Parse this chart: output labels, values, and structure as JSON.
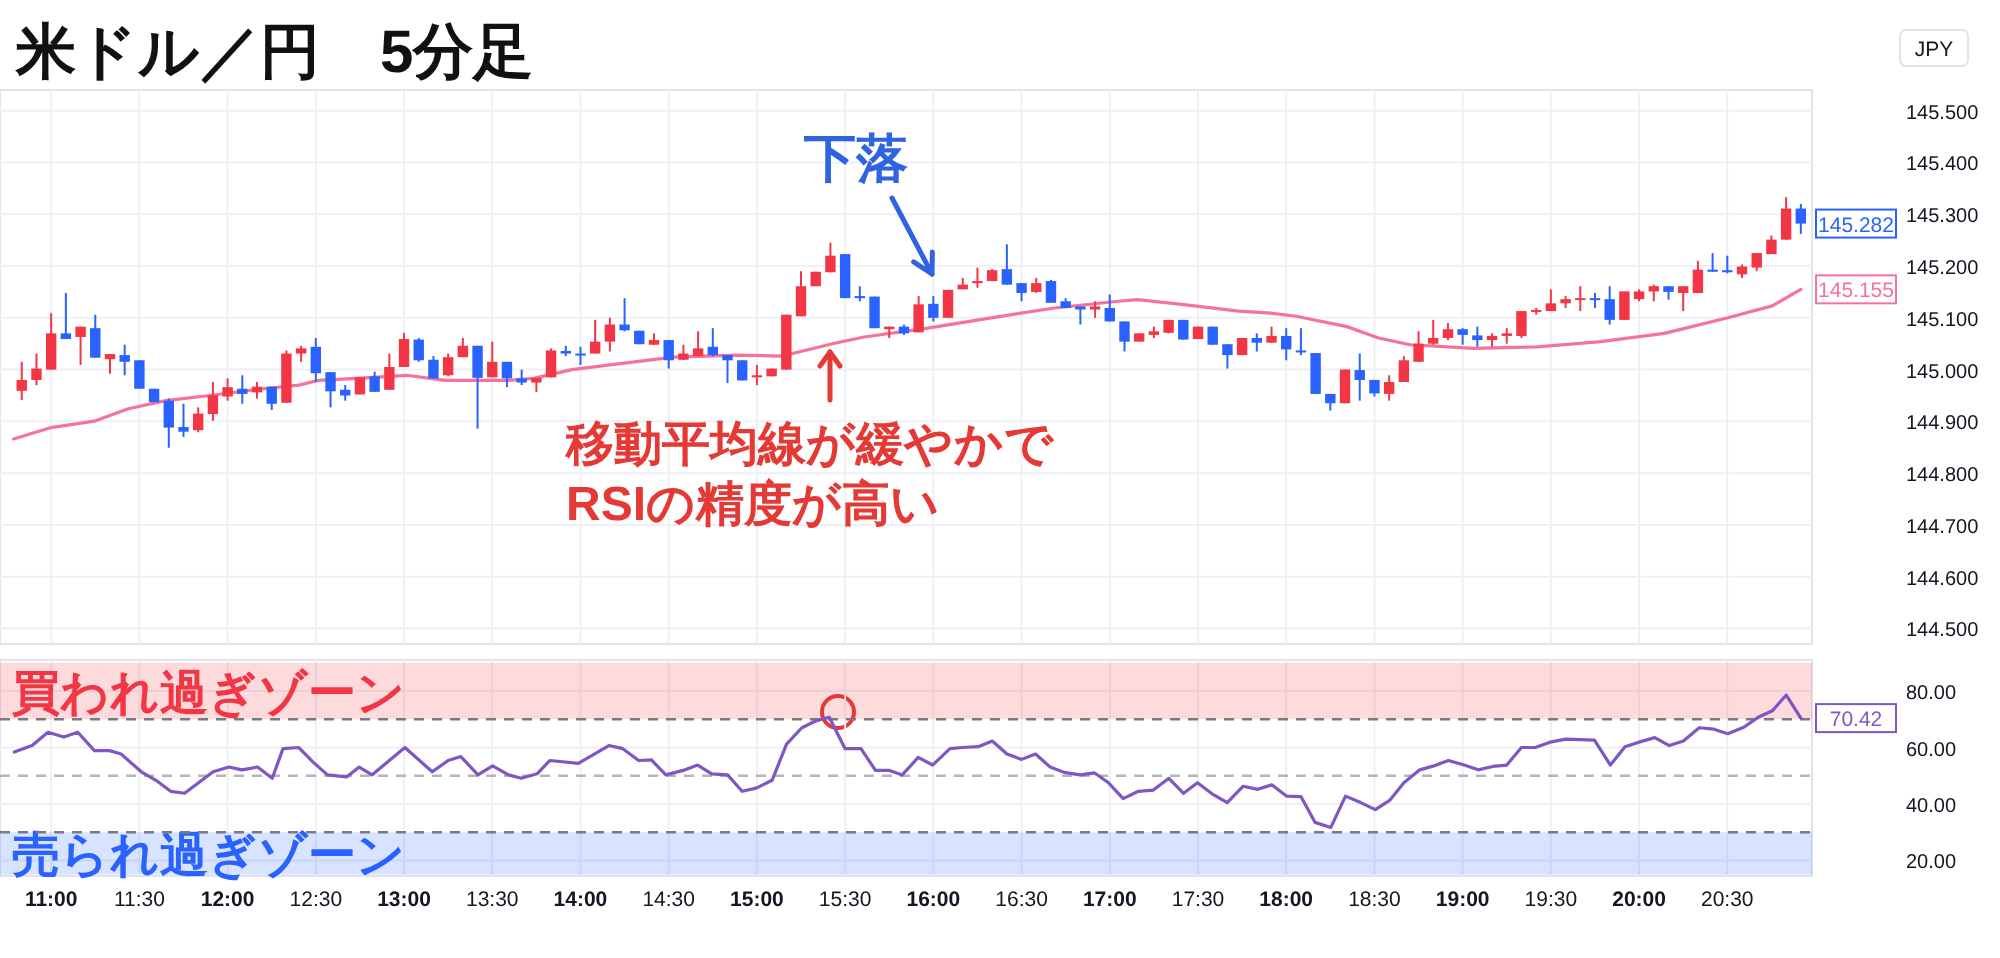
{
  "chart_data": [
    {
      "type": "candlestick",
      "title": "米ドル／円　5分足",
      "ylabel": "JPY",
      "x": [
        10.8333,
        10.9167,
        11,
        11.0833,
        11.1667,
        11.25,
        11.3333,
        11.4167,
        11.5,
        11.5833,
        11.6667,
        11.75,
        11.8333,
        11.9167,
        12,
        12.0833,
        12.1667,
        12.25,
        12.3333,
        12.4167,
        12.5,
        12.5833,
        12.6667,
        12.75,
        12.8333,
        12.9167,
        13,
        13.0833,
        13.1667,
        13.25,
        13.3333,
        13.4167,
        13.5,
        13.5833,
        13.6667,
        13.75,
        13.8333,
        13.9167,
        14,
        14.0833,
        14.1667,
        14.25,
        14.3333,
        14.4167,
        14.5,
        14.5833,
        14.6667,
        14.75,
        14.8333,
        14.9167,
        15,
        15.0833,
        15.1667,
        15.25,
        15.3333,
        15.4167,
        15.5,
        15.5833,
        15.6667,
        15.75,
        15.8333,
        15.9167,
        16,
        16.0833,
        16.1667,
        16.25,
        16.3333,
        16.4167,
        16.5,
        16.5833,
        16.6667,
        16.75,
        16.8333,
        16.9167,
        17,
        17.0833,
        17.1667,
        17.25,
        17.3333,
        17.4167,
        17.5,
        17.5833,
        17.6667,
        17.75,
        17.8333,
        17.9167,
        18,
        18.0833,
        18.1667,
        18.25,
        18.3333,
        18.4167,
        18.5,
        18.5833,
        18.6667,
        18.75,
        18.8333,
        18.9167,
        19,
        19.0833,
        19.1667,
        19.25,
        19.3333,
        19.4167,
        19.5,
        19.5833,
        19.6667,
        19.75,
        19.8333,
        19.9167,
        20,
        20.0833,
        20.1667,
        20.25,
        20.3333,
        20.4167,
        20.5,
        20.5833,
        20.6667,
        20.75,
        20.8333,
        20.9167
      ],
      "ohlc": [
        [
          144.959,
          145.015,
          144.941,
          144.98
        ],
        [
          144.98,
          145.031,
          144.97,
          145.002
        ],
        [
          145.0,
          145.109,
          145.0,
          145.07
        ],
        [
          145.07,
          145.148,
          145.059,
          145.059
        ],
        [
          145.063,
          145.083,
          145.009,
          145.083
        ],
        [
          145.08,
          145.106,
          145.023,
          145.023
        ],
        [
          145.02,
          145.03,
          144.992,
          145.03
        ],
        [
          145.028,
          145.048,
          144.989,
          145.015
        ],
        [
          145.018,
          145.018,
          144.963,
          144.963
        ],
        [
          144.963,
          144.963,
          144.937,
          144.937
        ],
        [
          144.94,
          144.944,
          144.849,
          144.888
        ],
        [
          144.889,
          144.934,
          144.87,
          144.88
        ],
        [
          144.883,
          144.927,
          144.879,
          144.915
        ],
        [
          144.914,
          144.976,
          144.901,
          144.95
        ],
        [
          144.948,
          144.983,
          144.94,
          144.966
        ],
        [
          144.963,
          144.989,
          144.934,
          144.953
        ],
        [
          144.956,
          144.976,
          144.944,
          144.967
        ],
        [
          144.967,
          144.967,
          144.922,
          144.934
        ],
        [
          144.936,
          145.037,
          144.936,
          145.031
        ],
        [
          145.031,
          145.046,
          145.015,
          145.041
        ],
        [
          145.044,
          145.061,
          144.976,
          144.993
        ],
        [
          144.995,
          144.995,
          144.927,
          144.958
        ],
        [
          144.961,
          144.97,
          144.94,
          144.95
        ],
        [
          144.952,
          144.985,
          144.952,
          144.985
        ],
        [
          144.987,
          144.996,
          144.957,
          144.957
        ],
        [
          144.961,
          145.031,
          144.961,
          145.005
        ],
        [
          145.005,
          145.071,
          145.005,
          145.059
        ],
        [
          145.058,
          145.061,
          145.015,
          145.018
        ],
        [
          145.019,
          145.026,
          144.983,
          144.983
        ],
        [
          144.989,
          145.031,
          144.987,
          145.024
        ],
        [
          145.024,
          145.061,
          145.024,
          145.046
        ],
        [
          145.046,
          145.046,
          144.886,
          144.984
        ],
        [
          144.985,
          145.054,
          144.985,
          145.015
        ],
        [
          145.015,
          145.015,
          144.966,
          144.983
        ],
        [
          144.983,
          145.0,
          144.97,
          144.975
        ],
        [
          144.975,
          144.984,
          144.957,
          144.984
        ],
        [
          144.985,
          145.041,
          144.985,
          145.037
        ],
        [
          145.036,
          145.046,
          145.026,
          145.031
        ],
        [
          145.031,
          145.044,
          145.009,
          145.028
        ],
        [
          145.031,
          145.096,
          145.031,
          145.054
        ],
        [
          145.054,
          145.1,
          145.035,
          145.087
        ],
        [
          145.087,
          145.138,
          145.074,
          145.076
        ],
        [
          145.075,
          145.075,
          145.049,
          145.049
        ],
        [
          145.048,
          145.07,
          145.048,
          145.057
        ],
        [
          145.057,
          145.057,
          145.002,
          145.018
        ],
        [
          145.019,
          145.048,
          145.019,
          145.031
        ],
        [
          145.026,
          145.074,
          145.026,
          145.041
        ],
        [
          145.044,
          145.08,
          145.026,
          145.028
        ],
        [
          145.028,
          145.028,
          144.974,
          145.018
        ],
        [
          145.018,
          145.018,
          144.979,
          144.979
        ],
        [
          144.985,
          145.009,
          144.97,
          144.989
        ],
        [
          144.987,
          145.002,
          144.987,
          145.002
        ],
        [
          145.0,
          145.106,
          145.0,
          145.106
        ],
        [
          145.103,
          145.19,
          145.103,
          145.161
        ],
        [
          145.161,
          145.189,
          145.161,
          145.189
        ],
        [
          145.188,
          145.245,
          145.188,
          145.22
        ],
        [
          145.223,
          145.223,
          145.138,
          145.138
        ],
        [
          145.142,
          145.161,
          145.132,
          145.138
        ],
        [
          145.141,
          145.141,
          145.08,
          145.08
        ],
        [
          145.078,
          145.083,
          145.061,
          145.083
        ],
        [
          145.083,
          145.087,
          145.067,
          145.07
        ],
        [
          145.072,
          145.142,
          145.072,
          145.126
        ],
        [
          145.127,
          145.142,
          145.093,
          145.1
        ],
        [
          145.1,
          145.154,
          145.1,
          145.154
        ],
        [
          145.155,
          145.177,
          145.155,
          145.164
        ],
        [
          145.167,
          145.197,
          145.158,
          145.171
        ],
        [
          145.171,
          145.194,
          145.171,
          145.192
        ],
        [
          145.194,
          145.242,
          145.164,
          145.164
        ],
        [
          145.167,
          145.167,
          145.132,
          145.148
        ],
        [
          145.15,
          145.177,
          145.148,
          145.167
        ],
        [
          145.171,
          145.173,
          145.129,
          145.129
        ],
        [
          145.132,
          145.138,
          145.119,
          145.119
        ],
        [
          145.122,
          145.122,
          145.087,
          145.116
        ],
        [
          145.116,
          145.132,
          145.1,
          145.122
        ],
        [
          145.119,
          145.145,
          145.093,
          145.093
        ],
        [
          145.093,
          145.093,
          145.035,
          145.054
        ],
        [
          145.054,
          145.07,
          145.054,
          145.07
        ],
        [
          145.067,
          145.083,
          145.061,
          145.074
        ],
        [
          145.071,
          145.096,
          145.07,
          145.096
        ],
        [
          145.096,
          145.096,
          145.058,
          145.058
        ],
        [
          145.059,
          145.083,
          145.059,
          145.083
        ],
        [
          145.083,
          145.083,
          145.048,
          145.048
        ],
        [
          145.049,
          145.049,
          145.002,
          145.028
        ],
        [
          145.028,
          145.061,
          145.028,
          145.061
        ],
        [
          145.061,
          145.07,
          145.035,
          145.052
        ],
        [
          145.052,
          145.083,
          145.052,
          145.065
        ],
        [
          145.065,
          145.08,
          145.018,
          145.039
        ],
        [
          145.037,
          145.08,
          145.028,
          145.035
        ],
        [
          145.032,
          145.032,
          144.953,
          144.953
        ],
        [
          144.953,
          144.953,
          144.921,
          144.935
        ],
        [
          144.935,
          145.0,
          144.935,
          145.0
        ],
        [
          144.999,
          145.031,
          144.94,
          144.98
        ],
        [
          144.98,
          144.98,
          144.948,
          144.954
        ],
        [
          144.953,
          144.989,
          144.94,
          144.976
        ],
        [
          144.976,
          145.026,
          144.976,
          145.018
        ],
        [
          145.015,
          145.074,
          145.015,
          145.05
        ],
        [
          145.05,
          145.096,
          145.048,
          145.061
        ],
        [
          145.061,
          145.09,
          145.057,
          145.078
        ],
        [
          145.078,
          145.08,
          145.048,
          145.067
        ],
        [
          145.066,
          145.083,
          145.044,
          145.057
        ],
        [
          145.057,
          145.07,
          145.044,
          145.065
        ],
        [
          145.065,
          145.08,
          145.05,
          145.07
        ],
        [
          145.065,
          145.113,
          145.061,
          145.113
        ],
        [
          145.113,
          145.119,
          145.106,
          145.115
        ],
        [
          145.113,
          145.155,
          145.113,
          145.128
        ],
        [
          145.128,
          145.142,
          145.119,
          145.136
        ],
        [
          145.135,
          145.161,
          145.113,
          145.138
        ],
        [
          145.138,
          145.148,
          145.119,
          145.135
        ],
        [
          145.136,
          145.161,
          145.087,
          145.096
        ],
        [
          145.096,
          145.151,
          145.096,
          145.151
        ],
        [
          145.136,
          145.155,
          145.132,
          145.151
        ],
        [
          145.151,
          145.164,
          145.132,
          145.161
        ],
        [
          145.161,
          145.161,
          145.135,
          145.15
        ],
        [
          145.148,
          145.161,
          145.113,
          145.161
        ],
        [
          145.148,
          145.21,
          145.148,
          145.193
        ],
        [
          145.193,
          145.225,
          145.189,
          145.189
        ],
        [
          145.192,
          145.22,
          145.186,
          145.188
        ],
        [
          145.184,
          145.203,
          145.177,
          145.199
        ],
        [
          145.197,
          145.225,
          145.19,
          145.225
        ],
        [
          145.223,
          145.259,
          145.223,
          145.251
        ],
        [
          145.251,
          145.333,
          145.251,
          145.311
        ],
        [
          145.311,
          145.32,
          145.262,
          145.282
        ]
      ],
      "colors": [
        "#f23645",
        "#f23645",
        "#f23645",
        "#2962ff",
        "#f23645",
        "#2962ff",
        "#f23645",
        "#2962ff",
        "#2962ff",
        "#2962ff",
        "#2962ff",
        "#2962ff",
        "#f23645",
        "#f23645",
        "#f23645",
        "#2962ff",
        "#f23645",
        "#2962ff",
        "#f23645",
        "#f23645",
        "#2962ff",
        "#2962ff",
        "#2962ff",
        "#f23645",
        "#2962ff",
        "#f23645",
        "#f23645",
        "#2962ff",
        "#2962ff",
        "#f23645",
        "#f23645",
        "#2962ff",
        "#f23645",
        "#2962ff",
        "#2962ff",
        "#f23645",
        "#f23645",
        "#2962ff",
        "#2962ff",
        "#f23645",
        "#f23645",
        "#2962ff",
        "#2962ff",
        "#f23645",
        "#2962ff",
        "#f23645",
        "#f23645",
        "#2962ff",
        "#2962ff",
        "#2962ff",
        "#f23645",
        "#f23645",
        "#f23645",
        "#f23645",
        "#f23645",
        "#f23645",
        "#2962ff",
        "#2962ff",
        "#2962ff",
        "#f23645",
        "#2962ff",
        "#f23645",
        "#2962ff",
        "#f23645",
        "#f23645",
        "#f23645",
        "#f23645",
        "#2962ff",
        "#2962ff",
        "#f23645",
        "#2962ff",
        "#2962ff",
        "#2962ff",
        "#f23645",
        "#2962ff",
        "#2962ff",
        "#f23645",
        "#f23645",
        "#f23645",
        "#2962ff",
        "#f23645",
        "#2962ff",
        "#2962ff",
        "#f23645",
        "#2962ff",
        "#f23645",
        "#2962ff",
        "#2962ff",
        "#2962ff",
        "#2962ff",
        "#f23645",
        "#2962ff",
        "#2962ff",
        "#f23645",
        "#f23645",
        "#f23645",
        "#f23645",
        "#f23645",
        "#2962ff",
        "#2962ff",
        "#f23645",
        "#f23645",
        "#f23645",
        "#f23645",
        "#f23645",
        "#f23645",
        "#f23645",
        "#2962ff",
        "#2962ff",
        "#f23645",
        "#f23645",
        "#f23645",
        "#2962ff",
        "#f23645",
        "#f23645",
        "#2962ff",
        "#2962ff",
        "#f23645",
        "#f23645",
        "#f23645",
        "#f23645",
        "#2962ff"
      ],
      "series": [
        {
          "type": "line",
          "color": "#f4729b",
          "x": [
            10.787,
            11.0,
            11.252,
            11.432,
            11.648,
            11.9,
            12.151,
            12.404,
            12.512,
            12.728,
            13.015,
            13.231,
            13.592,
            13.735,
            13.951,
            14.168,
            14.527,
            14.888,
            15.14,
            15.248,
            15.428,
            15.608,
            15.968,
            16.328,
            16.687,
            17.048,
            17.156,
            17.408,
            17.732,
            17.912,
            18.056,
            18.344,
            18.523,
            18.703,
            19.063,
            19.423,
            19.783,
            20.143,
            20.503,
            20.755,
            20.9167
          ],
          "values": [
            144.866,
            144.888,
            144.901,
            144.924,
            144.94,
            144.95,
            144.961,
            144.97,
            144.979,
            144.983,
            144.989,
            144.979,
            144.979,
            144.983,
            145.0,
            145.009,
            145.024,
            145.028,
            145.026,
            145.035,
            145.05,
            145.063,
            145.08,
            145.1,
            145.119,
            145.132,
            145.135,
            145.126,
            145.113,
            145.109,
            145.103,
            145.083,
            145.061,
            145.048,
            145.041,
            145.044,
            145.054,
            145.07,
            145.1,
            145.123,
            145.155
          ]
        }
      ],
      "xlim": [
        10.71,
        20.98
      ],
      "xticks": [
        11,
        11.5,
        12,
        12.5,
        13,
        13.5,
        14,
        14.5,
        15,
        15.5,
        16,
        16.5,
        17,
        17.5,
        18,
        18.5,
        19,
        19.5,
        20,
        20.5
      ],
      "ylim": [
        144.47,
        145.54
      ],
      "yticks": [
        {
          "value": 144.5,
          "label": "144.500"
        },
        {
          "value": 144.6,
          "label": "144.600"
        },
        {
          "value": 144.7,
          "label": "144.700"
        },
        {
          "value": 144.8,
          "label": "144.800"
        },
        {
          "value": 144.9,
          "label": "144.900"
        },
        {
          "value": 145.0,
          "label": "145.000"
        },
        {
          "value": 145.1,
          "label": "145.100"
        },
        {
          "value": 145.2,
          "label": "145.200"
        },
        {
          "value": 145.3,
          "label": "145.300"
        },
        {
          "value": 145.4,
          "label": "145.400"
        },
        {
          "value": 145.5,
          "label": "145.500"
        }
      ],
      "grid": true,
      "tick_labels": "y",
      "annotations": [
        "下落",
        "移動平均線が緩やかで\nRSIの精度が高い",
        {
          "text": "145.282",
          "y": 145.282
        },
        {
          "text": "145.155",
          "y": 145.155
        }
      ]
    },
    {
      "type": "line",
      "series": [
        {
          "color": "#7e57c2",
          "x": [
            10.791,
            10.892,
            10.982,
            11.072,
            11.151,
            11.245,
            11.331,
            11.396,
            11.511,
            11.594,
            11.677,
            11.756,
            11.918,
            12.008,
            12.08,
            12.17,
            12.253,
            12.314,
            12.404,
            12.483,
            12.566,
            12.674,
            12.746,
            12.818,
            13.005,
            13.16,
            13.25,
            13.322,
            13.419,
            13.502,
            13.592,
            13.664,
            13.754,
            13.826,
            13.988,
            14.161,
            14.24,
            14.33,
            14.402,
            14.484,
            14.582,
            14.664,
            14.744,
            14.834,
            14.916,
            14.996,
            15.086,
            15.168,
            15.255,
            15.33,
            15.41,
            15.5,
            15.59,
            15.672,
            15.752,
            15.824,
            15.914,
            15.996,
            16.094,
            16.165,
            16.255,
            16.334,
            16.417,
            16.5,
            16.579,
            16.662,
            16.741,
            16.831,
            16.914,
            16.993,
            17.076,
            17.162,
            17.245,
            17.335,
            17.418,
            17.497,
            17.587,
            17.666,
            17.756,
            17.839,
            17.918,
            18.001,
            18.084,
            18.163,
            18.253,
            18.336,
            18.422,
            18.505,
            18.588,
            18.667,
            18.757,
            18.836,
            18.919,
            19.009,
            19.088,
            19.171,
            19.25,
            19.333,
            19.412,
            19.495,
            19.585,
            19.747,
            19.837,
            19.92,
            19.999,
            20.089,
            20.171,
            20.251,
            20.341,
            20.424,
            20.503,
            20.593,
            20.675,
            20.755,
            20.834,
            20.9167
          ],
          "values": [
            58.4,
            60.7,
            65.4,
            63.7,
            65.4,
            58.9,
            58.9,
            57.7,
            51.4,
            48.4,
            44.5,
            43.8,
            51.4,
            53.1,
            52.1,
            53.1,
            49.1,
            59.6,
            60.0,
            54.9,
            50.3,
            49.6,
            53.1,
            50.3,
            60.0,
            51.4,
            55.4,
            56.8,
            50.3,
            53.5,
            50.3,
            49.1,
            50.7,
            55.4,
            54.4,
            60.7,
            59.6,
            55.4,
            55.6,
            50.3,
            51.9,
            53.8,
            50.7,
            50.3,
            44.5,
            45.6,
            48.4,
            61.2,
            67.0,
            69.3,
            70.7,
            59.6,
            59.6,
            51.9,
            51.9,
            50.3,
            56.5,
            53.8,
            59.6,
            60.0,
            60.3,
            62.3,
            57.7,
            55.8,
            57.7,
            53.1,
            51.2,
            50.3,
            51.0,
            47.5,
            41.9,
            44.5,
            44.9,
            49.1,
            43.8,
            47.5,
            43.3,
            40.5,
            46.3,
            45.2,
            46.8,
            42.8,
            42.6,
            33.5,
            31.7,
            42.8,
            40.5,
            38.0,
            41.4,
            47.5,
            52.1,
            53.5,
            55.4,
            53.8,
            52.1,
            53.3,
            53.8,
            60.0,
            60.0,
            61.9,
            63.0,
            62.6,
            53.8,
            60.3,
            61.9,
            63.5,
            60.7,
            62.3,
            67.0,
            66.5,
            64.9,
            67.2,
            70.7,
            73.0,
            78.6,
            70.42
          ]
        }
      ],
      "xlim": [
        10.71,
        20.98
      ],
      "xticks": [
        {
          "value": 11,
          "label": "11:00"
        },
        {
          "value": 11.5,
          "label": "11:30"
        },
        {
          "value": 12,
          "label": "12:00"
        },
        {
          "value": 12.5,
          "label": "12:30"
        },
        {
          "value": 13,
          "label": "13:00"
        },
        {
          "value": 13.5,
          "label": "13:30"
        },
        {
          "value": 14,
          "label": "14:00"
        },
        {
          "value": 14.5,
          "label": "14:30"
        },
        {
          "value": 15,
          "label": "15:00"
        },
        {
          "value": 15.5,
          "label": "15:30"
        },
        {
          "value": 16,
          "label": "16:00"
        },
        {
          "value": 16.5,
          "label": "16:30"
        },
        {
          "value": 17,
          "label": "17:00"
        },
        {
          "value": 17.5,
          "label": "17:30"
        },
        {
          "value": 18,
          "label": "18:00"
        },
        {
          "value": 18.5,
          "label": "18:30"
        },
        {
          "value": 19,
          "label": "19:00"
        },
        {
          "value": 19.5,
          "label": "19:30"
        },
        {
          "value": 20,
          "label": "20:00"
        },
        {
          "value": 20.5,
          "label": "20:30"
        }
      ],
      "ylim": [
        14.5,
        91
      ],
      "yticks": [
        {
          "value": 20,
          "label": "20.00"
        },
        {
          "value": 40,
          "label": "40.00"
        },
        {
          "value": 60,
          "label": "60.00"
        },
        {
          "value": 80,
          "label": "80.00"
        }
      ],
      "grid": true,
      "bands": [
        {
          "axis": "y",
          "from": 70,
          "to": 90,
          "label": "買われ過ぎゾーン",
          "color": "#f23645"
        },
        {
          "axis": "y",
          "from": 15,
          "to": 30,
          "label": "売られ過ぎゾーン",
          "color": "#2962ff"
        }
      ],
      "ref_lines": [
        {
          "axis": "y",
          "value": 70,
          "color": "#787b86",
          "line_style": "dashed"
        },
        {
          "axis": "y",
          "value": 50,
          "color": "#b2b5be",
          "line_style": "dashed"
        },
        {
          "axis": "y",
          "value": 30,
          "color": "#787b86",
          "line_style": "dashed"
        }
      ],
      "annotations": [
        {
          "text": "70.42",
          "y": 70.42
        }
      ]
    }
  ]
}
